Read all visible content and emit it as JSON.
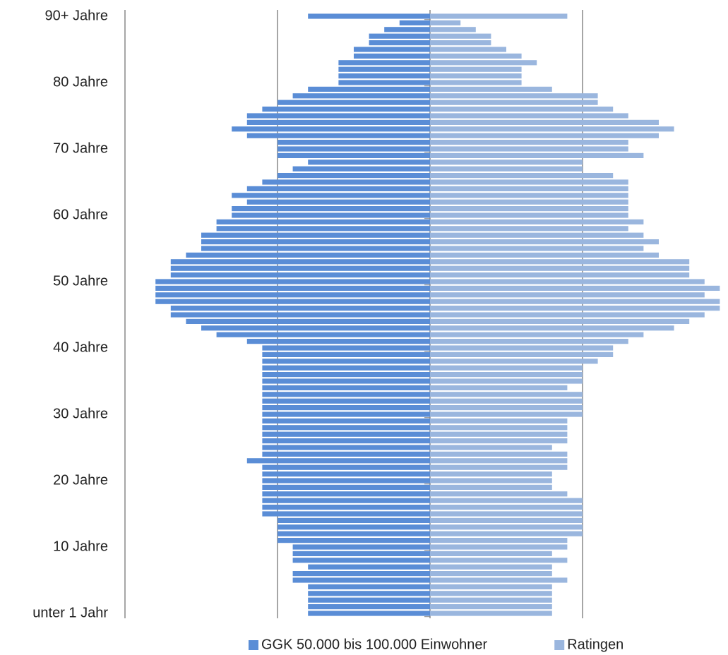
{
  "chart_data": {
    "type": "pyramid",
    "categories": [
      "90+ Jahre",
      null,
      null,
      null,
      null,
      null,
      null,
      null,
      null,
      null,
      "80 Jahre",
      null,
      null,
      null,
      null,
      null,
      null,
      null,
      null,
      null,
      "70 Jahre",
      null,
      null,
      null,
      null,
      null,
      null,
      null,
      null,
      null,
      "60 Jahre",
      null,
      null,
      null,
      null,
      null,
      null,
      null,
      null,
      null,
      "50 Jahre",
      null,
      null,
      null,
      null,
      null,
      null,
      null,
      null,
      null,
      "40 Jahre",
      null,
      null,
      null,
      null,
      null,
      null,
      null,
      null,
      null,
      "30 Jahre",
      null,
      null,
      null,
      null,
      null,
      null,
      null,
      null,
      null,
      "20 Jahre",
      null,
      null,
      null,
      null,
      null,
      null,
      null,
      null,
      null,
      "10 Jahre",
      null,
      null,
      null,
      null,
      null,
      null,
      null,
      null,
      null,
      "unter 1 Jahr"
    ],
    "series": [
      {
        "name": "GGK 50.000 bis 100.000 Einwohner",
        "color": "#5a8dd6",
        "values": [
          0.4,
          0.1,
          0.15,
          0.2,
          0.2,
          0.25,
          0.25,
          0.3,
          0.3,
          0.3,
          0.3,
          0.4,
          0.45,
          0.5,
          0.55,
          0.6,
          0.6,
          0.65,
          0.6,
          0.5,
          0.5,
          0.5,
          0.4,
          0.45,
          0.5,
          0.55,
          0.6,
          0.65,
          0.6,
          0.65,
          0.65,
          0.7,
          0.7,
          0.75,
          0.75,
          0.75,
          0.8,
          0.85,
          0.85,
          0.85,
          0.9,
          0.9,
          0.9,
          0.9,
          0.85,
          0.85,
          0.8,
          0.75,
          0.7,
          0.6,
          0.55,
          0.55,
          0.55,
          0.55,
          0.55,
          0.55,
          0.55,
          0.55,
          0.55,
          0.55,
          0.55,
          0.55,
          0.55,
          0.55,
          0.55,
          0.55,
          0.55,
          0.6,
          0.55,
          0.55,
          0.55,
          0.55,
          0.55,
          0.55,
          0.55,
          0.55,
          0.5,
          0.5,
          0.5,
          0.5,
          0.45,
          0.45,
          0.45,
          0.4,
          0.45,
          0.45,
          0.4,
          0.4,
          0.4,
          0.4,
          0.4
        ]
      },
      {
        "name": "Ratingen",
        "color": "#9ab6de",
        "values": [
          0.45,
          0.1,
          0.15,
          0.2,
          0.2,
          0.25,
          0.3,
          0.35,
          0.3,
          0.3,
          0.3,
          0.4,
          0.55,
          0.55,
          0.6,
          0.65,
          0.75,
          0.8,
          0.75,
          0.65,
          0.65,
          0.7,
          0.5,
          0.5,
          0.6,
          0.65,
          0.65,
          0.65,
          0.65,
          0.65,
          0.65,
          0.7,
          0.65,
          0.7,
          0.75,
          0.7,
          0.75,
          0.85,
          0.85,
          0.85,
          0.9,
          0.95,
          0.9,
          0.95,
          0.95,
          0.9,
          0.85,
          0.8,
          0.7,
          0.65,
          0.6,
          0.6,
          0.55,
          0.5,
          0.5,
          0.5,
          0.45,
          0.5,
          0.5,
          0.5,
          0.5,
          0.45,
          0.45,
          0.45,
          0.45,
          0.4,
          0.45,
          0.45,
          0.45,
          0.4,
          0.4,
          0.4,
          0.45,
          0.5,
          0.5,
          0.5,
          0.5,
          0.5,
          0.5,
          0.45,
          0.45,
          0.4,
          0.45,
          0.4,
          0.4,
          0.45,
          0.4,
          0.4,
          0.4,
          0.4,
          0.4
        ]
      }
    ],
    "xlim": [
      -1,
      0.95
    ],
    "xticks": [
      -1,
      -0.5,
      0,
      0.5
    ],
    "grid": true,
    "legend": "bottom"
  }
}
